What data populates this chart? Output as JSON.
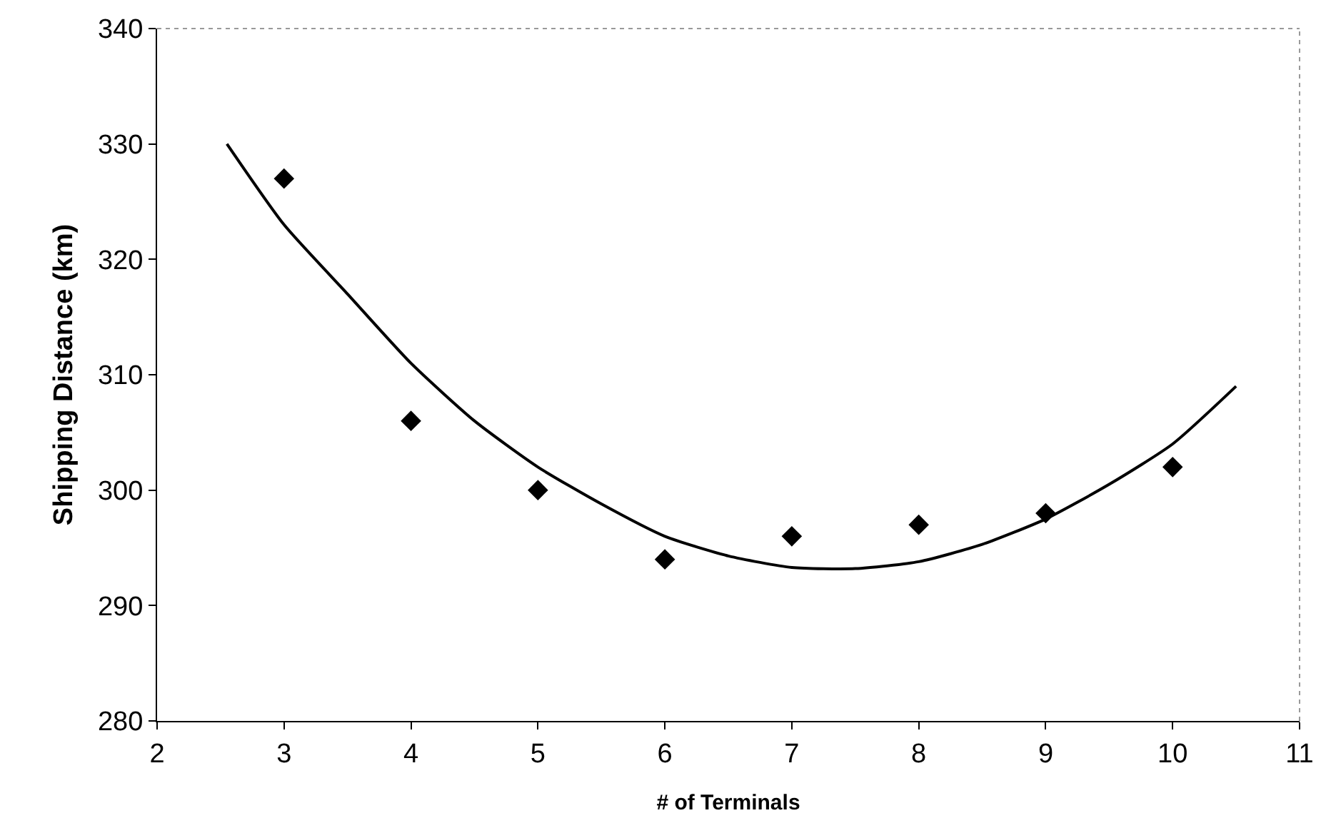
{
  "chart_data": {
    "type": "scatter",
    "xlabel": "# of Terminals",
    "ylabel": "Shipping Distance (km)",
    "xlim": [
      2,
      11
    ],
    "xticks": [
      2,
      3,
      4,
      5,
      6,
      7,
      8,
      9,
      10,
      11
    ],
    "ylim": [
      280,
      340
    ],
    "yticks": [
      280,
      290,
      300,
      310,
      320,
      330,
      340
    ],
    "grid": false,
    "series": [
      {
        "type": "scatter",
        "color": "#000000",
        "marker": "diamond",
        "x": [
          3,
          4,
          5,
          6,
          7,
          8,
          9,
          10
        ],
        "values": [
          327,
          306,
          300,
          294,
          296,
          297,
          298,
          302
        ]
      },
      {
        "type": "line",
        "color": "#000000",
        "marker": "none",
        "line_style": "solid",
        "x": [
          2.55,
          3,
          3.5,
          4,
          4.5,
          5,
          5.5,
          6,
          6.5,
          7,
          7.5,
          8,
          8.5,
          9,
          9.5,
          10,
          10.5
        ],
        "values": [
          330,
          323,
          317,
          311,
          306,
          302,
          298.8,
          296,
          294.3,
          293.3,
          293.2,
          293.8,
          295.3,
          297.5,
          300.5,
          304,
          309
        ]
      }
    ]
  }
}
